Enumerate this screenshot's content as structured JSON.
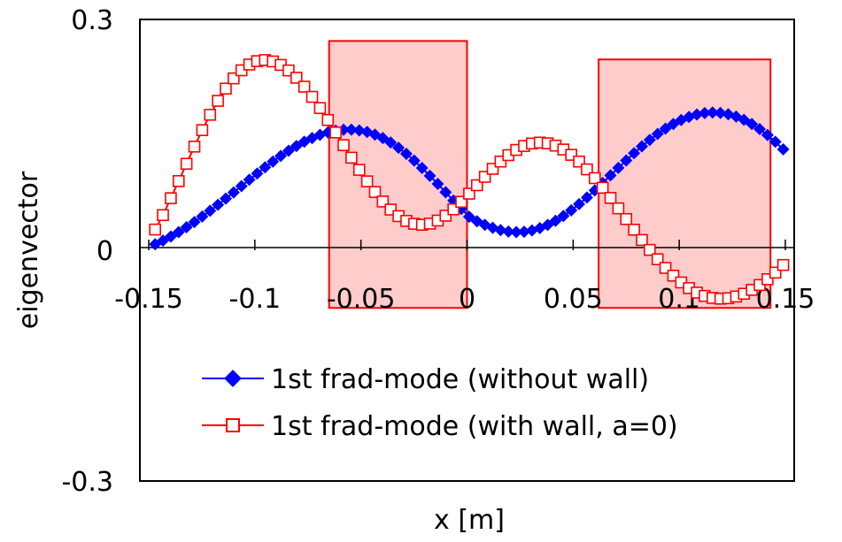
{
  "chart_data": {
    "type": "line",
    "title": "",
    "xlabel": "x [m]",
    "ylabel": "eigenvector",
    "xlim": [
      -0.15,
      0.15
    ],
    "ylim": [
      -0.3,
      0.3
    ],
    "x_ticks": [
      "-0.15",
      "-0.1",
      "-0.05",
      "0",
      "0.05",
      "0.1",
      "0.15"
    ],
    "y_ticks": [
      "0.3",
      "0",
      "-0.3"
    ],
    "grid": false,
    "legend_position": "bottom-center",
    "wall_regions": [
      {
        "x0": -0.065,
        "x1": 0.0,
        "y0": -0.075,
        "y1": 0.272
      },
      {
        "x0": 0.062,
        "x1": 0.143,
        "y0": -0.075,
        "y1": 0.248
      }
    ],
    "colors": {
      "wall_fill": "#ffcccc",
      "wall_edge": "#ff0000"
    },
    "series": [
      {
        "name": "1st frad-mode (without wall)",
        "color": "#0000ff",
        "marker": "filled-diamond",
        "x": [
          -0.147,
          -0.1433,
          -0.1396,
          -0.1359,
          -0.1322,
          -0.1285,
          -0.1248,
          -0.1211,
          -0.1174,
          -0.1137,
          -0.11,
          -0.1063,
          -0.1026,
          -0.0989,
          -0.0952,
          -0.0915,
          -0.0878,
          -0.0841,
          -0.0804,
          -0.0767,
          -0.073,
          -0.0693,
          -0.0656,
          -0.0619,
          -0.0582,
          -0.0545,
          -0.0508,
          -0.0471,
          -0.0434,
          -0.0397,
          -0.036,
          -0.0323,
          -0.0286,
          -0.0249,
          -0.0212,
          -0.0175,
          -0.0138,
          -0.0101,
          -0.0064,
          -0.0027,
          0.001,
          0.0047,
          0.0084,
          0.0121,
          0.0158,
          0.0195,
          0.0232,
          0.0269,
          0.0306,
          0.0343,
          0.038,
          0.0417,
          0.0454,
          0.0491,
          0.0528,
          0.0565,
          0.0602,
          0.0639,
          0.0676,
          0.0713,
          0.075,
          0.0787,
          0.0824,
          0.0861,
          0.0898,
          0.0935,
          0.0972,
          0.1009,
          0.1046,
          0.1083,
          0.112,
          0.1157,
          0.1194,
          0.1231,
          0.1268,
          0.1305,
          0.1342,
          0.1379,
          0.1416,
          0.1453,
          0.149
        ],
        "y": [
          0.0077,
          0.0125,
          0.0178,
          0.0236,
          0.0299,
          0.0367,
          0.0438,
          0.0513,
          0.0591,
          0.0671,
          0.0752,
          0.0834,
          0.0916,
          0.0997,
          0.1077,
          0.1153,
          0.1225,
          0.1293,
          0.1355,
          0.1411,
          0.1459,
          0.15,
          0.1532,
          0.1554,
          0.1566,
          0.1568,
          0.1558,
          0.1537,
          0.1503,
          0.1458,
          0.1401,
          0.1332,
          0.1253,
          0.1165,
          0.1069,
          0.0967,
          0.0862,
          0.0754,
          0.0645,
          0.0538,
          0.0436,
          0.0376,
          0.0331,
          0.0292,
          0.0262,
          0.0243,
          0.0235,
          0.024,
          0.0257,
          0.0287,
          0.0329,
          0.0382,
          0.0445,
          0.0518,
          0.0599,
          0.0686,
          0.0778,
          0.0874,
          0.0972,
          0.107,
          0.1167,
          0.1261,
          0.1351,
          0.1434,
          0.1511,
          0.158,
          0.1641,
          0.1692,
          0.1733,
          0.1764,
          0.1783,
          0.179,
          0.1785,
          0.1767,
          0.1737,
          0.1695,
          0.1641,
          0.1574,
          0.1497,
          0.1409,
          0.1312
        ]
      },
      {
        "name": "1st frad-mode (with wall, a=0)",
        "color": "#ff0000",
        "marker": "open-square",
        "x": [
          -0.147,
          -0.1433,
          -0.1396,
          -0.1359,
          -0.1322,
          -0.1285,
          -0.1248,
          -0.1211,
          -0.1174,
          -0.1137,
          -0.11,
          -0.1063,
          -0.1026,
          -0.0989,
          -0.0952,
          -0.0915,
          -0.0878,
          -0.0841,
          -0.0804,
          -0.0767,
          -0.073,
          -0.0693,
          -0.0656,
          -0.0619,
          -0.0582,
          -0.0545,
          -0.0508,
          -0.0471,
          -0.0434,
          -0.0397,
          -0.036,
          -0.0323,
          -0.0286,
          -0.0249,
          -0.0212,
          -0.0175,
          -0.0138,
          -0.0101,
          -0.0064,
          -0.0027,
          0.001,
          0.0047,
          0.0084,
          0.0121,
          0.0158,
          0.0195,
          0.0232,
          0.0269,
          0.0306,
          0.0343,
          0.038,
          0.0417,
          0.0454,
          0.0491,
          0.0528,
          0.0565,
          0.0602,
          0.0639,
          0.0676,
          0.0713,
          0.075,
          0.0787,
          0.0824,
          0.0861,
          0.0898,
          0.0935,
          0.0972,
          0.1009,
          0.1046,
          0.1083,
          0.112,
          0.1157,
          0.1194,
          0.1231,
          0.1268,
          0.1305,
          0.1342,
          0.1379,
          0.1416,
          0.1453,
          0.149
        ],
        "y": [
          0.0269,
          0.0457,
          0.0676,
          0.0899,
          0.1124,
          0.1347,
          0.1561,
          0.1761,
          0.1942,
          0.2101,
          0.2234,
          0.2339,
          0.2414,
          0.2458,
          0.2472,
          0.2454,
          0.2409,
          0.2337,
          0.2242,
          0.2126,
          0.1994,
          0.1848,
          0.1693,
          0.1531,
          0.1366,
          0.1203,
          0.1045,
          0.0895,
          0.0757,
          0.0633,
          0.0528,
          0.0443,
          0.0381,
          0.0343,
          0.0331,
          0.0346,
          0.0386,
          0.0449,
          0.0532,
          0.0629,
          0.0735,
          0.0845,
          0.0954,
          0.1058,
          0.1153,
          0.1236,
          0.1304,
          0.1355,
          0.1387,
          0.1399,
          0.139,
          0.136,
          0.1309,
          0.124,
          0.1153,
          0.1051,
          0.0937,
          0.0812,
          0.068,
          0.0544,
          0.0405,
          0.0267,
          0.0133,
          0.0004,
          -0.0118,
          -0.023,
          -0.0331,
          -0.0419,
          -0.0493,
          -0.0551,
          -0.0594,
          -0.062,
          -0.063,
          -0.0624,
          -0.0602,
          -0.0566,
          -0.0515,
          -0.0452,
          -0.0377,
          -0.0291,
          -0.0192
        ]
      }
    ]
  }
}
